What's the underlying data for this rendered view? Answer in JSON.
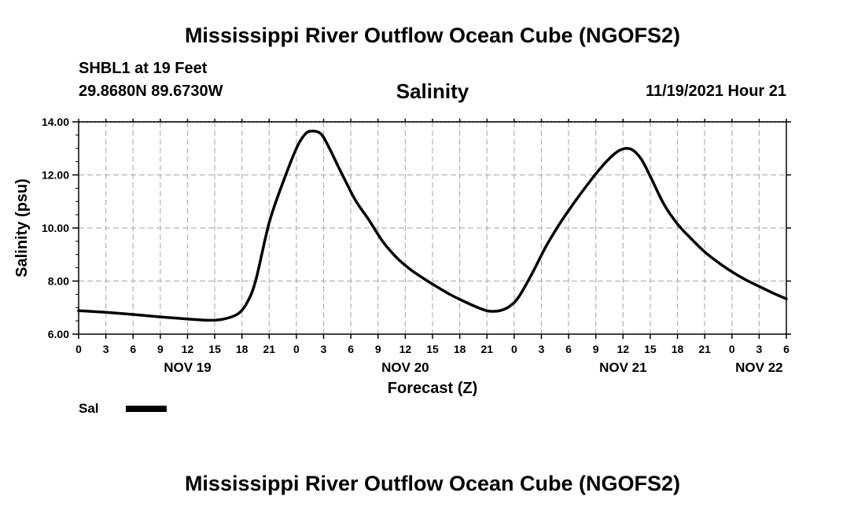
{
  "titles": {
    "top": "Mississippi River Outflow Ocean Cube (NGOFS2)",
    "bottom": "Mississippi River Outflow Ocean Cube (NGOFS2)"
  },
  "station": {
    "name": "SHBL1 at 19 Feet",
    "coords": "29.8680N  89.6730W"
  },
  "timestamp": "11/19/2021 Hour 21",
  "legend": {
    "label": "Sal",
    "color": "#000000"
  },
  "chart_data": {
    "type": "line",
    "title": "Salinity",
    "xlabel": "Forecast (Z)",
    "ylabel": "Salinity (psu)",
    "x_unit": "hours since NOV 19 00Z",
    "xlim": [
      0,
      78
    ],
    "ylim": [
      6,
      14
    ],
    "grid": true,
    "y_ticks": [
      {
        "value": 6,
        "label": "6.00"
      },
      {
        "value": 8,
        "label": "8.00"
      },
      {
        "value": 10,
        "label": "10.00"
      },
      {
        "value": 12,
        "label": "12.00"
      },
      {
        "value": 14,
        "label": "14.00"
      }
    ],
    "x_ticks": [
      {
        "value": 0,
        "label": "0"
      },
      {
        "value": 3,
        "label": "3"
      },
      {
        "value": 6,
        "label": "6"
      },
      {
        "value": 9,
        "label": "9"
      },
      {
        "value": 12,
        "label": "12"
      },
      {
        "value": 15,
        "label": "15"
      },
      {
        "value": 18,
        "label": "18"
      },
      {
        "value": 21,
        "label": "21"
      },
      {
        "value": 24,
        "label": "0"
      },
      {
        "value": 27,
        "label": "3"
      },
      {
        "value": 30,
        "label": "6"
      },
      {
        "value": 33,
        "label": "9"
      },
      {
        "value": 36,
        "label": "12"
      },
      {
        "value": 39,
        "label": "15"
      },
      {
        "value": 42,
        "label": "18"
      },
      {
        "value": 45,
        "label": "21"
      },
      {
        "value": 48,
        "label": "0"
      },
      {
        "value": 51,
        "label": "3"
      },
      {
        "value": 54,
        "label": "6"
      },
      {
        "value": 57,
        "label": "9"
      },
      {
        "value": 60,
        "label": "12"
      },
      {
        "value": 63,
        "label": "15"
      },
      {
        "value": 66,
        "label": "18"
      },
      {
        "value": 69,
        "label": "21"
      },
      {
        "value": 72,
        "label": "0"
      },
      {
        "value": 75,
        "label": "3"
      },
      {
        "value": 78,
        "label": "6"
      }
    ],
    "day_labels": [
      {
        "value": 12,
        "label": "NOV 19"
      },
      {
        "value": 36,
        "label": "NOV 20"
      },
      {
        "value": 60,
        "label": "NOV 21"
      },
      {
        "value": 75,
        "label": "NOV 22"
      }
    ],
    "series": [
      {
        "name": "Sal",
        "x": [
          0,
          3,
          6,
          9,
          12,
          14.5,
          16,
          17.5,
          18.5,
          19.5,
          21,
          22.5,
          24,
          25,
          25.8,
          26.7,
          27.5,
          29,
          30.5,
          32,
          33.5,
          35,
          36.5,
          38,
          39.5,
          41,
          42.5,
          44,
          45,
          45.8,
          46.6,
          47.5,
          48.5,
          50,
          51.5,
          53,
          54.5,
          56,
          57.5,
          59,
          60,
          61,
          62,
          63,
          64.5,
          66,
          67.5,
          69,
          70.5,
          72,
          73.5,
          75,
          76.5,
          78
        ],
        "y": [
          6.88,
          6.82,
          6.74,
          6.65,
          6.57,
          6.52,
          6.57,
          6.75,
          7.15,
          8.0,
          10.2,
          11.7,
          13.0,
          13.55,
          13.65,
          13.55,
          13.1,
          12.05,
          11.05,
          10.3,
          9.5,
          8.9,
          8.45,
          8.1,
          7.78,
          7.48,
          7.23,
          7.0,
          6.88,
          6.86,
          6.9,
          7.05,
          7.4,
          8.3,
          9.3,
          10.15,
          10.9,
          11.6,
          12.25,
          12.78,
          12.98,
          12.95,
          12.6,
          11.95,
          10.9,
          10.15,
          9.6,
          9.1,
          8.7,
          8.35,
          8.05,
          7.8,
          7.55,
          7.33
        ]
      }
    ]
  }
}
